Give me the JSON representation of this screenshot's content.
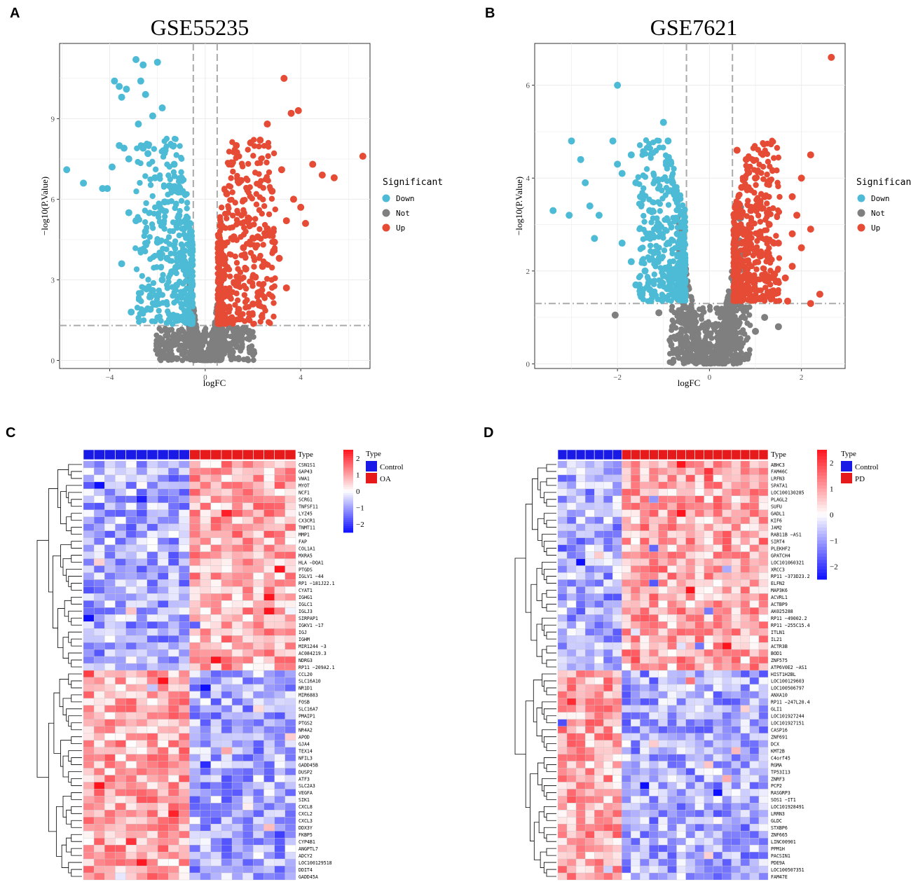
{
  "panels": {
    "A": {
      "letter": "A",
      "title": "GSE55235",
      "xlabel": "logFC",
      "ylabel": "−log10(P.Value)",
      "xticks": [
        "−4",
        "0",
        "4"
      ],
      "yticks": [
        "0",
        "3",
        "6",
        "9"
      ],
      "legend_title": "Significant",
      "legend": [
        {
          "label": "Down",
          "color": "#4DBBD5"
        },
        {
          "label": "Not",
          "color": "#7F7F7F"
        },
        {
          "label": "Up",
          "color": "#E64B35"
        }
      ]
    },
    "B": {
      "letter": "B",
      "title": "GSE7621",
      "xlabel": "logFC",
      "ylabel": "−log10(P.Value)",
      "xticks": [
        "−2",
        "0",
        "2"
      ],
      "yticks": [
        "0",
        "2",
        "4",
        "6"
      ],
      "legend_title": "Significant",
      "legend": [
        {
          "label": "Down",
          "color": "#4DBBD5"
        },
        {
          "label": "Not",
          "color": "#7F7F7F"
        },
        {
          "label": "Up",
          "color": "#E64B35"
        }
      ]
    },
    "C": {
      "letter": "C",
      "type_label": "Type",
      "legend_title": "Type",
      "groups": [
        {
          "label": "Control",
          "color": "#1A1AE6"
        },
        {
          "label": "OA",
          "color": "#E61A1A"
        }
      ],
      "scale_ticks": [
        "2",
        "1",
        "0",
        "−1",
        "−2"
      ],
      "genes": [
        "CSN1S1",
        "GAP43",
        "VWA1",
        "MYOT",
        "NCF1",
        "SCRG1",
        "TNFSF11",
        "LYZ45",
        "CX3CR1",
        "TNMT11",
        "MMP1",
        "FAP",
        "COL1A1",
        "MXRA5",
        "HLA −DQA1",
        "PTGDS",
        "IGLV1 −44",
        "RP1 −181J22.1",
        "CYAT1",
        "IGHG1",
        "IGLC1",
        "IGLJ3",
        "SIRPAP1",
        "IGKV1 −17",
        "IGJ",
        "IGHM",
        "MIR1244 −3",
        "AC084219.3",
        "NDRG3",
        "RP11 −209A2.1",
        "CCL20",
        "SLC16A10",
        "NR1D1",
        "MIR6883",
        "FOSB",
        "SLC16A7",
        "PMAIP1",
        "PTGS2",
        "NR4A2",
        "APOD",
        "GJA4",
        "TEX14",
        "NFIL3",
        "GADD45B",
        "DUSP2",
        "ATF3",
        "SLC2A3",
        "VEGFA",
        "SIK1",
        "CXCL8",
        "CXCL2",
        "CXCL3",
        "DDX3Y",
        "FKBP5",
        "CYP4B1",
        "ANGPTL7",
        "ADCY2",
        "LOC100129518",
        "DDIT4",
        "GADD45A"
      ]
    },
    "D": {
      "letter": "D",
      "type_label": "Type",
      "legend_title": "Type",
      "groups": [
        {
          "label": "Control",
          "color": "#1A1AE6"
        },
        {
          "label": "PD",
          "color": "#E61A1A"
        }
      ],
      "scale_ticks": [
        "2",
        "1",
        "0",
        "−1",
        "−2"
      ],
      "genes": [
        "ABHC3",
        "FAM46C",
        "LRFN3",
        "SPATA1",
        "LOC100130285",
        "PLAGL2",
        "SUFU",
        "GADL1",
        "KIF6",
        "JAM2",
        "RAB11B −AS1",
        "SIRT4",
        "PLEKHF2",
        "GPATCH4",
        "LOC101060321",
        "XRCC3",
        "RP11 −373D23.2",
        "ELFN2",
        "MAP3K6",
        "ACVRL1",
        "ACTBP9",
        "AK025288",
        "RP11 −49002.2",
        "RP11 −255C15.4",
        "ITLN1",
        "IL21",
        "ACTR3B",
        "BOD1",
        "ZNF575",
        "ATP6V0E2 −AS1",
        "HIST1H2BL",
        "LOC100129603",
        "LOC100506797",
        "ANXA10",
        "RP11 −247L20.4",
        "GLI1",
        "LOC101927244",
        "LOC101927151",
        "CASP16",
        "ZNF691",
        "DCX",
        "KMT2B",
        "C4orf45",
        "RGMA",
        "TP53I13",
        "ZNRF3",
        "PCP2",
        "RASGRP3",
        "SOS1 −IT1",
        "LOC101928491",
        "LRRN3",
        "GLDC",
        "STXBP6",
        "ZNF665",
        "LINC00901",
        "PPM1H",
        "PACSIN1",
        "PDE9A",
        "LOC100507351",
        "FAM47E"
      ]
    }
  },
  "chart_data": [
    {
      "type": "scatter",
      "id": "A",
      "title": "GSE55235",
      "xlabel": "logFC",
      "ylabel": "−log10(P.Value)",
      "xlim": [
        -6.1,
        6.9
      ],
      "ylim": [
        -0.3,
        11.8
      ],
      "threshold_logfc": 0.5,
      "threshold_y": 1.3,
      "series": [
        {
          "name": "Down",
          "points": [
            [
              -5.8,
              7.1
            ],
            [
              -5.1,
              6.6
            ],
            [
              -4.3,
              6.4
            ],
            [
              -4.1,
              6.4
            ],
            [
              -3.8,
              10.4
            ],
            [
              -3.6,
              10.2
            ],
            [
              -3.5,
              9.8
            ],
            [
              -3.3,
              10.1
            ],
            [
              -3.6,
              8.0
            ],
            [
              -3.4,
              7.9
            ],
            [
              -3.9,
              7.2
            ],
            [
              -3.2,
              7.5
            ],
            [
              -2.9,
              11.2
            ],
            [
              -2.6,
              11.0
            ],
            [
              -2.0,
              11.1
            ],
            [
              -2.7,
              10.4
            ],
            [
              -2.5,
              9.9
            ],
            [
              -2.2,
              9.1
            ],
            [
              -1.8,
              9.4
            ],
            [
              -2.8,
              8.8
            ],
            [
              -2.6,
              7.9
            ],
            [
              -2.4,
              7.7
            ],
            [
              -2.1,
              6.8
            ],
            [
              -3.5,
              3.6
            ],
            [
              -3.1,
              1.8
            ],
            [
              -2.3,
              1.9
            ],
            [
              -3.2,
              5.5
            ],
            [
              -2.9,
              5.2
            ],
            [
              -2.5,
              4.8
            ],
            [
              -2.0,
              4.4
            ],
            [
              -1.7,
              5.9
            ],
            [
              -1.5,
              6.5
            ],
            [
              -1.3,
              7.3
            ],
            [
              -1.1,
              5.4
            ],
            [
              -1.0,
              6.8
            ],
            [
              -0.9,
              4.9
            ],
            [
              -1.6,
              3.8
            ],
            [
              -1.4,
              3.3
            ],
            [
              -1.2,
              2.8
            ],
            [
              -1.0,
              2.4
            ],
            [
              -0.8,
              2.1
            ],
            [
              -0.7,
              1.8
            ],
            [
              -0.6,
              1.5
            ],
            [
              -2.2,
              2.6
            ],
            [
              -1.8,
              3.0
            ],
            [
              -1.9,
              4.0
            ],
            [
              -2.7,
              4.1
            ],
            [
              -0.8,
              3.2
            ],
            [
              -0.6,
              2.9
            ],
            [
              -1.3,
              1.6
            ]
          ]
        },
        {
          "name": "Not",
          "points": [
            [
              -0.3,
              0.2
            ],
            [
              0.0,
              0.05
            ],
            [
              0.3,
              0.3
            ],
            [
              -0.45,
              1.1
            ],
            [
              0.45,
              1.0
            ],
            [
              0.8,
              0.9
            ],
            [
              -0.9,
              0.8
            ],
            [
              1.2,
              1.1
            ],
            [
              1.6,
              1.2
            ],
            [
              -0.2,
              0.5
            ],
            [
              0.2,
              0.6
            ],
            [
              0.1,
              0.15
            ],
            [
              -0.1,
              0.8
            ],
            [
              0.4,
              0.3
            ],
            [
              -0.4,
              0.4
            ],
            [
              1.0,
              0.6
            ],
            [
              -1.1,
              0.9
            ]
          ]
        },
        {
          "name": "Up",
          "points": [
            [
              3.3,
              10.5
            ],
            [
              3.9,
              9.3
            ],
            [
              3.6,
              9.2
            ],
            [
              2.6,
              8.8
            ],
            [
              6.6,
              7.6
            ],
            [
              4.5,
              7.3
            ],
            [
              4.9,
              6.9
            ],
            [
              5.4,
              6.8
            ],
            [
              2.3,
              8.2
            ],
            [
              1.9,
              8.1
            ],
            [
              1.3,
              8.0
            ],
            [
              1.1,
              7.3
            ],
            [
              3.2,
              7.1
            ],
            [
              2.8,
              6.3
            ],
            [
              3.7,
              6.0
            ],
            [
              4.0,
              5.7
            ],
            [
              4.2,
              5.1
            ],
            [
              3.4,
              5.2
            ],
            [
              2.6,
              4.9
            ],
            [
              2.2,
              4.6
            ],
            [
              1.8,
              5.3
            ],
            [
              1.5,
              6.7
            ],
            [
              0.9,
              6.2
            ],
            [
              0.7,
              5.0
            ],
            [
              3.1,
              3.8
            ],
            [
              2.4,
              3.5
            ],
            [
              3.4,
              2.7
            ],
            [
              1.7,
              3.4
            ],
            [
              1.3,
              2.8
            ],
            [
              1.0,
              2.4
            ],
            [
              0.8,
              2.0
            ],
            [
              0.65,
              1.7
            ],
            [
              0.55,
              1.4
            ],
            [
              2.0,
              2.1
            ],
            [
              1.6,
              4.2
            ],
            [
              2.9,
              4.4
            ],
            [
              1.2,
              4.6
            ],
            [
              0.8,
              3.6
            ],
            [
              2.1,
              3.1
            ],
            [
              1.4,
              1.9
            ]
          ]
        }
      ]
    },
    {
      "type": "scatter",
      "id": "B",
      "title": "GSE7621",
      "xlabel": "logFC",
      "ylabel": "−log10(P.Value)",
      "xlim": [
        -3.8,
        2.95
      ],
      "ylim": [
        -0.1,
        6.9
      ],
      "threshold_logfc": 0.5,
      "threshold_y": 1.3,
      "series": [
        {
          "name": "Down",
          "points": [
            [
              -3.4,
              3.3
            ],
            [
              -3.0,
              4.8
            ],
            [
              -3.05,
              3.2
            ],
            [
              -2.8,
              4.4
            ],
            [
              -2.7,
              3.9
            ],
            [
              -2.6,
              3.4
            ],
            [
              -2.5,
              2.7
            ],
            [
              -2.4,
              3.2
            ],
            [
              -2.0,
              6.0
            ],
            [
              -2.1,
              4.8
            ],
            [
              -2.0,
              4.3
            ],
            [
              -1.9,
              4.1
            ],
            [
              -1.7,
              4.5
            ],
            [
              -1.6,
              3.9
            ],
            [
              -1.5,
              3.6
            ],
            [
              -1.3,
              3.3
            ],
            [
              -1.0,
              5.2
            ],
            [
              -0.9,
              4.8
            ],
            [
              -0.8,
              3.9
            ],
            [
              -1.9,
              2.6
            ],
            [
              -1.7,
              2.2
            ],
            [
              -1.6,
              1.7
            ],
            [
              -1.5,
              1.5
            ],
            [
              -1.4,
              2.0
            ],
            [
              -1.2,
              2.4
            ],
            [
              -1.0,
              1.9
            ],
            [
              -0.9,
              2.6
            ],
            [
              -0.8,
              1.6
            ],
            [
              -0.7,
              2.8
            ],
            [
              -0.6,
              1.4
            ],
            [
              -1.1,
              3.0
            ],
            [
              -0.7,
              3.5
            ],
            [
              -1.3,
              1.6
            ],
            [
              -0.6,
              2.2
            ]
          ]
        },
        {
          "name": "Not",
          "points": [
            [
              -2.05,
              1.05
            ],
            [
              -0.2,
              0.1
            ],
            [
              0.0,
              0.02
            ],
            [
              0.2,
              0.2
            ],
            [
              -0.4,
              1.0
            ],
            [
              0.4,
              1.1
            ],
            [
              0.8,
              1.2
            ],
            [
              1.2,
              1.0
            ],
            [
              1.5,
              0.8
            ],
            [
              -1.1,
              1.1
            ],
            [
              -0.8,
              0.8
            ],
            [
              0.6,
              0.5
            ],
            [
              -0.3,
              0.6
            ],
            [
              0.3,
              0.4
            ],
            [
              0.1,
              0.8
            ],
            [
              -0.1,
              0.3
            ],
            [
              1.0,
              0.7
            ]
          ]
        },
        {
          "name": "Up",
          "points": [
            [
              2.65,
              6.6
            ],
            [
              2.2,
              4.5
            ],
            [
              2.0,
              4.0
            ],
            [
              1.8,
              3.6
            ],
            [
              1.9,
              3.2
            ],
            [
              1.8,
              2.8
            ],
            [
              2.2,
              2.9
            ],
            [
              2.0,
              2.5
            ],
            [
              1.8,
              2.1
            ],
            [
              1.65,
              1.85
            ],
            [
              1.4,
              1.55
            ],
            [
              2.4,
              1.5
            ],
            [
              2.2,
              1.3
            ],
            [
              1.7,
              1.35
            ],
            [
              1.5,
              2.6
            ],
            [
              1.3,
              3.0
            ],
            [
              1.2,
              3.6
            ],
            [
              1.0,
              4.0
            ],
            [
              0.8,
              4.4
            ],
            [
              0.6,
              4.6
            ],
            [
              0.7,
              3.8
            ],
            [
              0.9,
              3.3
            ],
            [
              1.1,
              2.8
            ],
            [
              1.3,
              2.3
            ],
            [
              0.6,
              3.2
            ],
            [
              0.7,
              2.6
            ],
            [
              0.8,
              2.0
            ],
            [
              0.9,
              1.6
            ],
            [
              0.55,
              1.4
            ],
            [
              1.0,
              2.4
            ],
            [
              1.4,
              2.6
            ],
            [
              1.1,
              3.5
            ]
          ]
        }
      ]
    },
    {
      "type": "heatmap",
      "id": "C",
      "n_control": 10,
      "n_case": 10,
      "n_genes": 60,
      "n_up_genes": 30,
      "value_range": [
        -2.5,
        2.5
      ]
    },
    {
      "type": "heatmap",
      "id": "D",
      "n_control": 7,
      "n_case": 16,
      "n_genes": 60,
      "n_up_genes": 30,
      "value_range": [
        -2.5,
        2.5
      ]
    }
  ]
}
